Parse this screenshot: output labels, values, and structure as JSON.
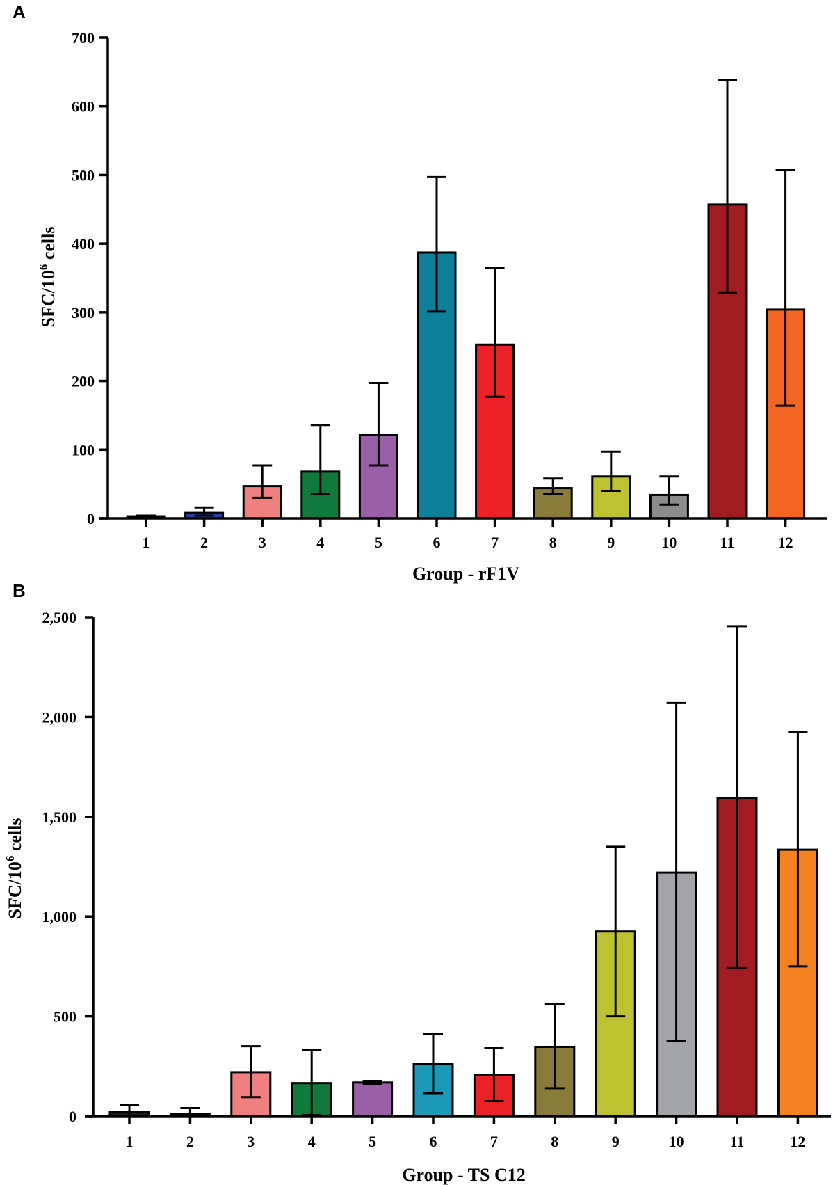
{
  "chart_data": [
    {
      "panel": "A",
      "type": "bar",
      "categories": [
        "1",
        "2",
        "3",
        "4",
        "5",
        "6",
        "7",
        "8",
        "9",
        "10",
        "11",
        "12"
      ],
      "values": [
        3,
        8,
        47,
        68,
        122,
        387,
        253,
        44,
        61,
        34,
        457,
        304
      ],
      "error_low": [
        0,
        4,
        30,
        35,
        77,
        301,
        177,
        36,
        40,
        20,
        329,
        164
      ],
      "error_high": [
        4,
        16,
        77,
        136,
        197,
        497,
        365,
        58,
        97,
        61,
        638,
        507
      ],
      "colors": [
        "#1c1c1c",
        "#2b3f9e",
        "#f08080",
        "#0f7a3c",
        "#9b5fa8",
        "#0e7f98",
        "#ec2027",
        "#8b7b3a",
        "#bfc230",
        "#8c8c8c",
        "#a01c20",
        "#f26522"
      ],
      "ylim": [
        0,
        700
      ],
      "yticks": [
        0,
        100,
        200,
        300,
        400,
        500,
        600,
        700
      ],
      "ytick_labels": [
        "0",
        "100",
        "200",
        "300",
        "400",
        "500",
        "600",
        "700"
      ],
      "xlabel": "Group - rF1V",
      "ylabel": "SFC/10",
      "ylabel_sup": "6",
      "ylabel_tail": " cells"
    },
    {
      "panel": "B",
      "type": "bar",
      "categories": [
        "1",
        "2",
        "3",
        "4",
        "5",
        "6",
        "7",
        "8",
        "9",
        "10",
        "11",
        "12"
      ],
      "values": [
        20,
        10,
        220,
        165,
        168,
        260,
        205,
        347,
        925,
        1220,
        1595,
        1335
      ],
      "error_low": [
        0,
        0,
        95,
        5,
        160,
        115,
        75,
        140,
        500,
        375,
        745,
        750
      ],
      "error_high": [
        55,
        40,
        350,
        330,
        176,
        410,
        340,
        560,
        1350,
        2070,
        2455,
        1925
      ],
      "colors": [
        "#1c1c1c",
        "#2b3f9e",
        "#f08080",
        "#0f7a3c",
        "#9b5fa8",
        "#1a9ab8",
        "#ec2027",
        "#8b7b3a",
        "#bfc230",
        "#a3a4a8",
        "#a01c20",
        "#f58220"
      ],
      "ylim": [
        0,
        2500
      ],
      "yticks": [
        0,
        500,
        1000,
        1500,
        2000,
        2500
      ],
      "ytick_labels": [
        "0",
        "500",
        "1,000",
        "1,500",
        "2,000",
        "2,500"
      ],
      "xlabel": "Group - TS C12",
      "ylabel": "SFC/10",
      "ylabel_sup": "6",
      "ylabel_tail": " cells"
    }
  ]
}
